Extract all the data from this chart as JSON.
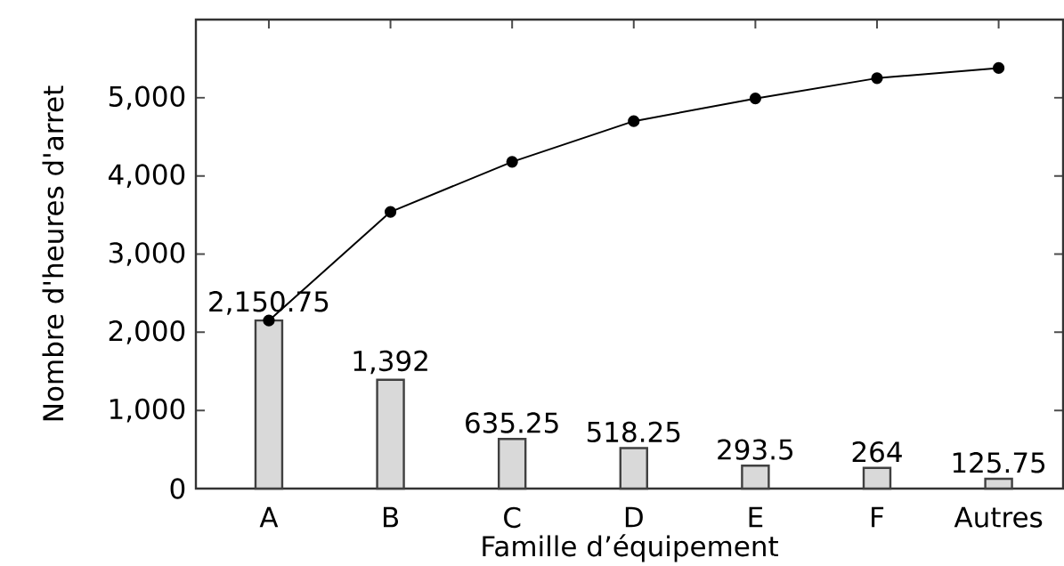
{
  "chart_data": {
    "type": "bar",
    "xlabel": "Famille d’équipement",
    "ylabel": "Nombre d'heures d'arret",
    "categories": [
      "A",
      "B",
      "C",
      "D",
      "E",
      "F",
      "Autres"
    ],
    "series": [
      {
        "color": "#d9d9d9",
        "values": [
          2150.75,
          1392,
          635.25,
          518.25,
          293.5,
          264,
          125.75
        ],
        "value_labels": [
          "2,150.75",
          "1,392",
          "635.25",
          "518.25",
          "293.5",
          "264",
          "125.75"
        ]
      },
      {
        "type": "line",
        "color": "#000000",
        "marker": "circle",
        "values": [
          2150,
          3540,
          4180,
          4700,
          4990,
          5250,
          5380
        ]
      }
    ],
    "ylim": [
      0,
      6000
    ],
    "yticks": [
      0,
      {
        "value": 1000,
        "label": "1,000"
      },
      {
        "value": 2000,
        "label": "2,000"
      },
      {
        "value": 3000,
        "label": "3,000"
      },
      {
        "value": 4000,
        "label": "4,000"
      },
      {
        "value": 5000,
        "label": "5,000"
      }
    ],
    "grid": false
  }
}
